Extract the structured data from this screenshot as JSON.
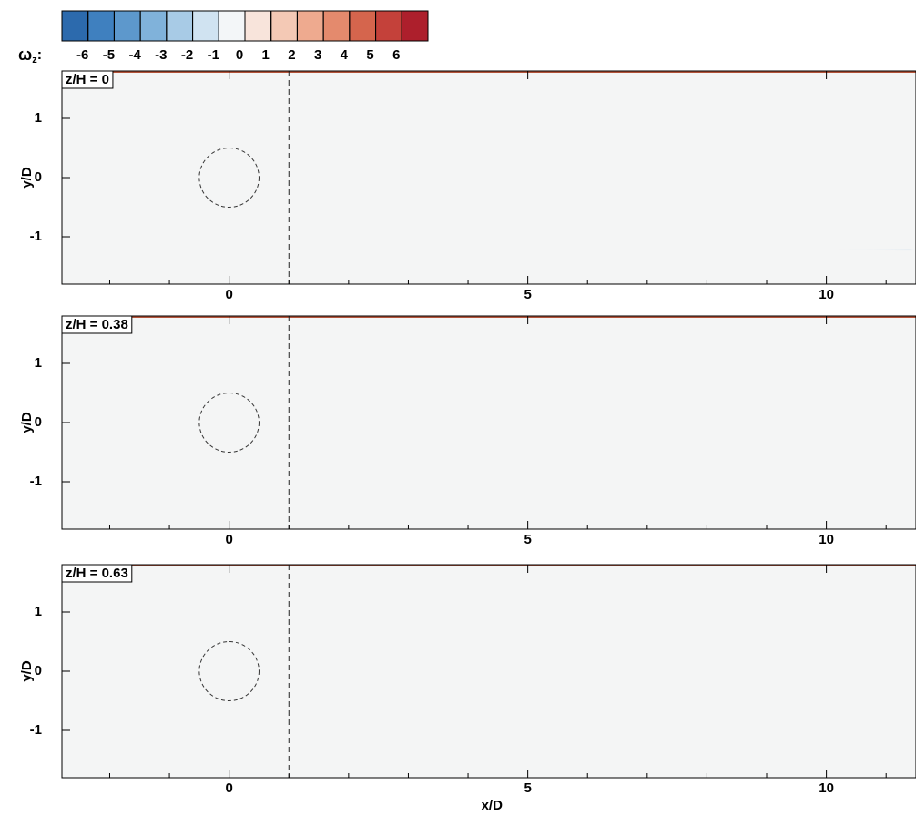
{
  "colorbar": {
    "label": "ω",
    "label_subscript": "z",
    "label_suffix": ":",
    "lim": [
      -7,
      7
    ],
    "ticks": [
      -6,
      -5,
      -4,
      -3,
      -2,
      -1,
      0,
      1,
      2,
      3,
      4,
      5,
      6
    ],
    "colors": [
      "#2c6aad",
      "#3f80bf",
      "#5d98cc",
      "#80b2da",
      "#a8cbe6",
      "#d0e3f1",
      "#f3f6f8",
      "#f8e4db",
      "#f4c9b5",
      "#eeaa8f",
      "#e48a6d",
      "#d5654d",
      "#c4413a",
      "#ad1f2c"
    ]
  },
  "chart_data": [
    {
      "type": "contour",
      "title": "z/H = 0",
      "ylabel": "y/D",
      "xlim": [
        -2.8,
        11.5
      ],
      "ylim": [
        -1.8,
        1.8
      ],
      "xticks": [
        0,
        5,
        10
      ],
      "xminorticks": [
        -2,
        -1,
        1,
        2,
        3,
        4,
        6,
        7,
        8,
        9,
        11
      ],
      "yticks": [
        -1,
        0,
        1
      ],
      "vline": 1,
      "cylinder": {
        "center": [
          0,
          0
        ],
        "radius": 0.5
      }
    },
    {
      "type": "contour",
      "title": "z/H = 0.38",
      "ylabel": "y/D",
      "xlim": [
        -2.8,
        11.5
      ],
      "ylim": [
        -1.8,
        1.8
      ],
      "xticks": [
        0,
        5,
        10
      ],
      "xminorticks": [
        -2,
        -1,
        1,
        2,
        3,
        4,
        6,
        7,
        8,
        9,
        11
      ],
      "yticks": [
        -1,
        0,
        1
      ],
      "vline": 1,
      "cylinder": {
        "center": [
          0,
          0
        ],
        "radius": 0.5
      }
    },
    {
      "type": "contour",
      "title": "z/H = 0.63",
      "ylabel": "y/D",
      "xlabel": "x/D",
      "xlim": [
        -2.8,
        11.5
      ],
      "ylim": [
        -1.8,
        1.8
      ],
      "xticks": [
        0,
        5,
        10
      ],
      "xminorticks": [
        -2,
        -1,
        1,
        2,
        3,
        4,
        6,
        7,
        8,
        9,
        11
      ],
      "yticks": [
        -1,
        0,
        1
      ],
      "vline": 1,
      "cylinder": {
        "center": [
          0,
          0
        ],
        "radius": 0.5
      }
    }
  ]
}
